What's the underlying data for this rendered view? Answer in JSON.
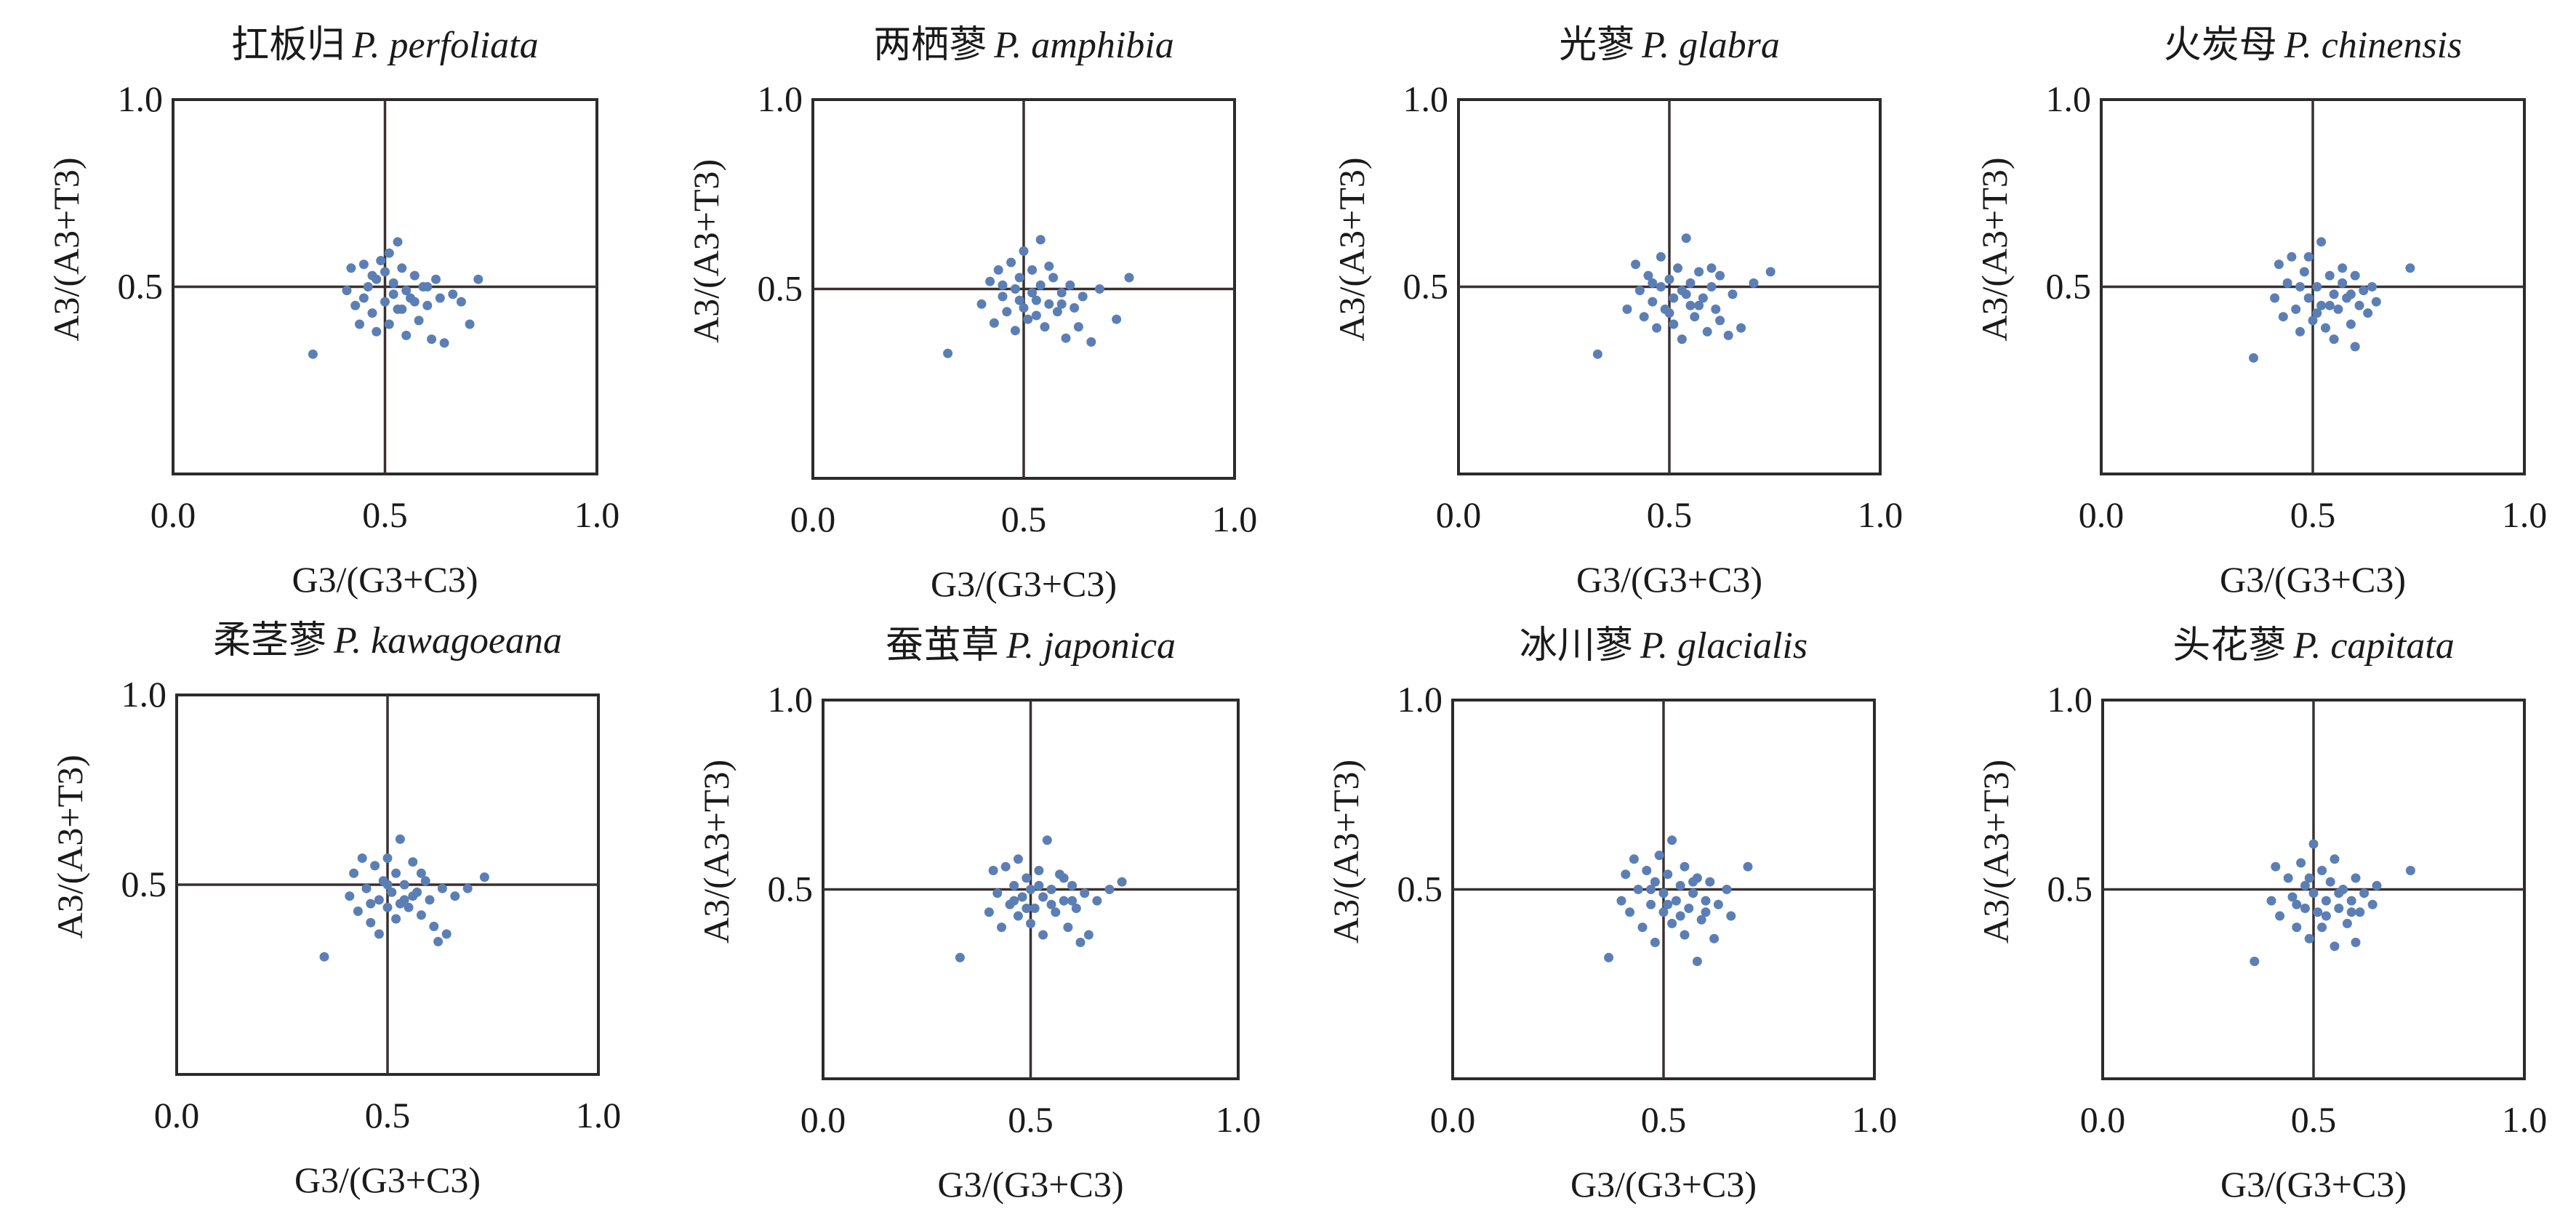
{
  "marker_color": "#5b7fb5",
  "frame_color": "#2b2b2b",
  "quadrant_line_color": "#3a3030",
  "chart_data": [
    {
      "type": "scatter",
      "title_cn": "扛板归",
      "title_species": "P. perfoliata",
      "xlabel": "G3/(G3+C3)",
      "ylabel": "A3/(A3+T3)",
      "xlim": [
        0.0,
        1.0
      ],
      "ylim": [
        0.0,
        1.0
      ],
      "xticks": [
        "0.0",
        "0.5",
        "1.0"
      ],
      "yticks": [
        "0.5",
        "1.0"
      ],
      "points": [
        [
          0.33,
          0.32
        ],
        [
          0.41,
          0.49
        ],
        [
          0.42,
          0.55
        ],
        [
          0.43,
          0.45
        ],
        [
          0.44,
          0.4
        ],
        [
          0.45,
          0.56
        ],
        [
          0.46,
          0.5
        ],
        [
          0.47,
          0.43
        ],
        [
          0.48,
          0.38
        ],
        [
          0.48,
          0.52
        ],
        [
          0.49,
          0.57
        ],
        [
          0.5,
          0.46
        ],
        [
          0.5,
          0.54
        ],
        [
          0.51,
          0.59
        ],
        [
          0.51,
          0.4
        ],
        [
          0.52,
          0.48
        ],
        [
          0.52,
          0.51
        ],
        [
          0.53,
          0.62
        ],
        [
          0.54,
          0.44
        ],
        [
          0.54,
          0.55
        ],
        [
          0.55,
          0.37
        ],
        [
          0.55,
          0.49
        ],
        [
          0.56,
          0.47
        ],
        [
          0.57,
          0.53
        ],
        [
          0.58,
          0.41
        ],
        [
          0.59,
          0.5
        ],
        [
          0.6,
          0.45
        ],
        [
          0.61,
          0.36
        ],
        [
          0.62,
          0.52
        ],
        [
          0.63,
          0.47
        ],
        [
          0.64,
          0.35
        ],
        [
          0.66,
          0.48
        ],
        [
          0.68,
          0.46
        ],
        [
          0.7,
          0.4
        ],
        [
          0.72,
          0.52
        ],
        [
          0.45,
          0.47
        ],
        [
          0.47,
          0.53
        ],
        [
          0.53,
          0.44
        ],
        [
          0.57,
          0.46
        ],
        [
          0.6,
          0.5
        ]
      ]
    },
    {
      "type": "scatter",
      "title_cn": "两栖蓼",
      "title_species": "P. amphibia",
      "xlabel": "G3/(G3+C3)",
      "ylabel": "A3/(A3+T3)",
      "xlim": [
        0.0,
        1.0
      ],
      "ylim": [
        0.0,
        1.0
      ],
      "xticks": [
        "0.0",
        "0.5",
        "1.0"
      ],
      "yticks": [
        "0.5",
        "1.0"
      ],
      "points": [
        [
          0.32,
          0.33
        ],
        [
          0.4,
          0.46
        ],
        [
          0.42,
          0.52
        ],
        [
          0.43,
          0.41
        ],
        [
          0.44,
          0.55
        ],
        [
          0.45,
          0.48
        ],
        [
          0.46,
          0.44
        ],
        [
          0.47,
          0.57
        ],
        [
          0.48,
          0.39
        ],
        [
          0.48,
          0.5
        ],
        [
          0.49,
          0.53
        ],
        [
          0.5,
          0.45
        ],
        [
          0.5,
          0.6
        ],
        [
          0.51,
          0.42
        ],
        [
          0.52,
          0.49
        ],
        [
          0.52,
          0.55
        ],
        [
          0.53,
          0.47
        ],
        [
          0.54,
          0.63
        ],
        [
          0.54,
          0.51
        ],
        [
          0.55,
          0.4
        ],
        [
          0.56,
          0.46
        ],
        [
          0.57,
          0.53
        ],
        [
          0.58,
          0.44
        ],
        [
          0.59,
          0.49
        ],
        [
          0.6,
          0.37
        ],
        [
          0.61,
          0.51
        ],
        [
          0.62,
          0.45
        ],
        [
          0.63,
          0.4
        ],
        [
          0.64,
          0.48
        ],
        [
          0.66,
          0.36
        ],
        [
          0.68,
          0.5
        ],
        [
          0.72,
          0.42
        ],
        [
          0.75,
          0.53
        ],
        [
          0.45,
          0.51
        ],
        [
          0.49,
          0.47
        ],
        [
          0.53,
          0.43
        ],
        [
          0.56,
          0.56
        ],
        [
          0.59,
          0.46
        ]
      ]
    },
    {
      "type": "scatter",
      "title_cn": "光蓼",
      "title_species": "P. glabra",
      "xlabel": "G3/(G3+C3)",
      "ylabel": "A3/(A3+T3)",
      "xlim": [
        0.0,
        1.0
      ],
      "ylim": [
        0.0,
        1.0
      ],
      "xticks": [
        "0.0",
        "0.5",
        "1.0"
      ],
      "yticks": [
        "0.5",
        "1.0"
      ],
      "points": [
        [
          0.33,
          0.32
        ],
        [
          0.4,
          0.44
        ],
        [
          0.42,
          0.56
        ],
        [
          0.43,
          0.49
        ],
        [
          0.44,
          0.42
        ],
        [
          0.45,
          0.53
        ],
        [
          0.46,
          0.46
        ],
        [
          0.47,
          0.39
        ],
        [
          0.48,
          0.58
        ],
        [
          0.48,
          0.5
        ],
        [
          0.49,
          0.44
        ],
        [
          0.5,
          0.52
        ],
        [
          0.51,
          0.47
        ],
        [
          0.51,
          0.4
        ],
        [
          0.52,
          0.55
        ],
        [
          0.53,
          0.49
        ],
        [
          0.53,
          0.36
        ],
        [
          0.54,
          0.63
        ],
        [
          0.55,
          0.45
        ],
        [
          0.55,
          0.51
        ],
        [
          0.56,
          0.42
        ],
        [
          0.57,
          0.54
        ],
        [
          0.58,
          0.47
        ],
        [
          0.59,
          0.38
        ],
        [
          0.6,
          0.5
        ],
        [
          0.61,
          0.44
        ],
        [
          0.62,
          0.53
        ],
        [
          0.64,
          0.37
        ],
        [
          0.65,
          0.48
        ],
        [
          0.67,
          0.39
        ],
        [
          0.7,
          0.51
        ],
        [
          0.74,
          0.54
        ],
        [
          0.46,
          0.51
        ],
        [
          0.5,
          0.43
        ],
        [
          0.54,
          0.48
        ],
        [
          0.57,
          0.45
        ],
        [
          0.6,
          0.55
        ],
        [
          0.62,
          0.41
        ]
      ]
    },
    {
      "type": "scatter",
      "title_cn": "火炭母",
      "title_species": "P. chinensis",
      "xlabel": "G3/(G3+C3)",
      "ylabel": "A3/(A3+T3)",
      "xlim": [
        0.0,
        1.0
      ],
      "ylim": [
        0.0,
        1.0
      ],
      "xticks": [
        "0.0",
        "0.5",
        "1.0"
      ],
      "yticks": [
        "0.5",
        "1.0"
      ],
      "points": [
        [
          0.36,
          0.31
        ],
        [
          0.41,
          0.47
        ],
        [
          0.42,
          0.56
        ],
        [
          0.43,
          0.42
        ],
        [
          0.44,
          0.51
        ],
        [
          0.45,
          0.58
        ],
        [
          0.46,
          0.44
        ],
        [
          0.47,
          0.38
        ],
        [
          0.48,
          0.54
        ],
        [
          0.49,
          0.47
        ],
        [
          0.49,
          0.58
        ],
        [
          0.5,
          0.41
        ],
        [
          0.51,
          0.5
        ],
        [
          0.52,
          0.62
        ],
        [
          0.52,
          0.45
        ],
        [
          0.53,
          0.39
        ],
        [
          0.54,
          0.53
        ],
        [
          0.55,
          0.48
        ],
        [
          0.55,
          0.36
        ],
        [
          0.56,
          0.44
        ],
        [
          0.57,
          0.51
        ],
        [
          0.58,
          0.47
        ],
        [
          0.59,
          0.4
        ],
        [
          0.6,
          0.53
        ],
        [
          0.6,
          0.34
        ],
        [
          0.61,
          0.45
        ],
        [
          0.62,
          0.49
        ],
        [
          0.63,
          0.43
        ],
        [
          0.64,
          0.5
        ],
        [
          0.65,
          0.46
        ],
        [
          0.73,
          0.55
        ],
        [
          0.47,
          0.5
        ],
        [
          0.51,
          0.43
        ],
        [
          0.54,
          0.45
        ],
        [
          0.57,
          0.55
        ],
        [
          0.59,
          0.48
        ]
      ]
    },
    {
      "type": "scatter",
      "title_cn": "柔茎蓼",
      "title_species": "P. kawagoeana",
      "xlabel": "G3/(G3+C3)",
      "ylabel": "A3/(A3+T3)",
      "xlim": [
        0.0,
        1.0
      ],
      "ylim": [
        0.0,
        1.0
      ],
      "xticks": [
        "0.0",
        "0.5",
        "1.0"
      ],
      "yticks": [
        "0.5",
        "1.0"
      ],
      "points": [
        [
          0.35,
          0.31
        ],
        [
          0.41,
          0.47
        ],
        [
          0.42,
          0.53
        ],
        [
          0.43,
          0.43
        ],
        [
          0.44,
          0.57
        ],
        [
          0.45,
          0.49
        ],
        [
          0.46,
          0.4
        ],
        [
          0.47,
          0.55
        ],
        [
          0.48,
          0.46
        ],
        [
          0.48,
          0.37
        ],
        [
          0.49,
          0.51
        ],
        [
          0.5,
          0.57
        ],
        [
          0.5,
          0.44
        ],
        [
          0.51,
          0.48
        ],
        [
          0.52,
          0.53
        ],
        [
          0.52,
          0.41
        ],
        [
          0.53,
          0.62
        ],
        [
          0.54,
          0.46
        ],
        [
          0.54,
          0.5
        ],
        [
          0.55,
          0.44
        ],
        [
          0.56,
          0.56
        ],
        [
          0.57,
          0.48
        ],
        [
          0.58,
          0.42
        ],
        [
          0.59,
          0.51
        ],
        [
          0.6,
          0.46
        ],
        [
          0.61,
          0.39
        ],
        [
          0.62,
          0.35
        ],
        [
          0.63,
          0.49
        ],
        [
          0.64,
          0.37
        ],
        [
          0.66,
          0.47
        ],
        [
          0.69,
          0.49
        ],
        [
          0.73,
          0.52
        ],
        [
          0.46,
          0.45
        ],
        [
          0.5,
          0.5
        ],
        [
          0.53,
          0.45
        ],
        [
          0.56,
          0.47
        ],
        [
          0.58,
          0.53
        ]
      ]
    },
    {
      "type": "scatter",
      "title_cn": "蚕茧草",
      "title_species": "P. japonica",
      "xlabel": "G3/(G3+C3)",
      "ylabel": "A3/(A3+T3)",
      "xlim": [
        0.0,
        1.0
      ],
      "ylim": [
        0.0,
        1.0
      ],
      "xticks": [
        "0.0",
        "0.5",
        "1.0"
      ],
      "yticks": [
        "0.5",
        "1.0"
      ],
      "points": [
        [
          0.33,
          0.32
        ],
        [
          0.4,
          0.44
        ],
        [
          0.41,
          0.55
        ],
        [
          0.42,
          0.49
        ],
        [
          0.43,
          0.4
        ],
        [
          0.44,
          0.56
        ],
        [
          0.45,
          0.46
        ],
        [
          0.46,
          0.51
        ],
        [
          0.47,
          0.43
        ],
        [
          0.47,
          0.58
        ],
        [
          0.48,
          0.48
        ],
        [
          0.49,
          0.53
        ],
        [
          0.5,
          0.41
        ],
        [
          0.5,
          0.5
        ],
        [
          0.51,
          0.45
        ],
        [
          0.52,
          0.55
        ],
        [
          0.53,
          0.48
        ],
        [
          0.53,
          0.38
        ],
        [
          0.54,
          0.63
        ],
        [
          0.55,
          0.5
        ],
        [
          0.56,
          0.44
        ],
        [
          0.57,
          0.54
        ],
        [
          0.58,
          0.47
        ],
        [
          0.59,
          0.4
        ],
        [
          0.6,
          0.51
        ],
        [
          0.61,
          0.45
        ],
        [
          0.62,
          0.36
        ],
        [
          0.63,
          0.49
        ],
        [
          0.64,
          0.38
        ],
        [
          0.66,
          0.47
        ],
        [
          0.69,
          0.5
        ],
        [
          0.72,
          0.52
        ],
        [
          0.46,
          0.47
        ],
        [
          0.49,
          0.45
        ],
        [
          0.52,
          0.51
        ],
        [
          0.55,
          0.46
        ],
        [
          0.58,
          0.53
        ],
        [
          0.6,
          0.47
        ]
      ]
    },
    {
      "type": "scatter",
      "title_cn": "冰川蓼",
      "title_species": "P. glacialis",
      "xlabel": "G3/(G3+C3)",
      "ylabel": "A3/(A3+T3)",
      "xlim": [
        0.0,
        1.0
      ],
      "ylim": [
        0.0,
        1.0
      ],
      "xticks": [
        "0.0",
        "0.5",
        "1.0"
      ],
      "yticks": [
        "0.5",
        "1.0"
      ],
      "points": [
        [
          0.37,
          0.32
        ],
        [
          0.4,
          0.47
        ],
        [
          0.41,
          0.54
        ],
        [
          0.42,
          0.44
        ],
        [
          0.43,
          0.58
        ],
        [
          0.44,
          0.5
        ],
        [
          0.45,
          0.4
        ],
        [
          0.46,
          0.55
        ],
        [
          0.47,
          0.46
        ],
        [
          0.48,
          0.52
        ],
        [
          0.48,
          0.36
        ],
        [
          0.49,
          0.59
        ],
        [
          0.5,
          0.44
        ],
        [
          0.5,
          0.49
        ],
        [
          0.51,
          0.54
        ],
        [
          0.52,
          0.41
        ],
        [
          0.52,
          0.63
        ],
        [
          0.53,
          0.47
        ],
        [
          0.54,
          0.51
        ],
        [
          0.55,
          0.38
        ],
        [
          0.55,
          0.56
        ],
        [
          0.56,
          0.45
        ],
        [
          0.57,
          0.49
        ],
        [
          0.58,
          0.31
        ],
        [
          0.58,
          0.53
        ],
        [
          0.59,
          0.42
        ],
        [
          0.6,
          0.47
        ],
        [
          0.61,
          0.52
        ],
        [
          0.62,
          0.37
        ],
        [
          0.63,
          0.46
        ],
        [
          0.65,
          0.5
        ],
        [
          0.66,
          0.43
        ],
        [
          0.7,
          0.56
        ],
        [
          0.47,
          0.5
        ],
        [
          0.51,
          0.46
        ],
        [
          0.54,
          0.43
        ],
        [
          0.57,
          0.52
        ],
        [
          0.6,
          0.44
        ]
      ]
    },
    {
      "type": "scatter",
      "title_cn": "头花蓼",
      "title_species": "P. capitata",
      "xlabel": "G3/(G3+C3)",
      "ylabel": "A3/(A3+T3)",
      "xlim": [
        0.0,
        1.0
      ],
      "ylim": [
        0.0,
        1.0
      ],
      "xticks": [
        "0.0",
        "0.5",
        "1.0"
      ],
      "yticks": [
        "0.5",
        "1.0"
      ],
      "points": [
        [
          0.36,
          0.31
        ],
        [
          0.4,
          0.47
        ],
        [
          0.41,
          0.56
        ],
        [
          0.42,
          0.43
        ],
        [
          0.44,
          0.53
        ],
        [
          0.45,
          0.48
        ],
        [
          0.46,
          0.4
        ],
        [
          0.47,
          0.57
        ],
        [
          0.48,
          0.45
        ],
        [
          0.48,
          0.51
        ],
        [
          0.49,
          0.37
        ],
        [
          0.5,
          0.62
        ],
        [
          0.5,
          0.49
        ],
        [
          0.51,
          0.44
        ],
        [
          0.52,
          0.55
        ],
        [
          0.52,
          0.4
        ],
        [
          0.53,
          0.47
        ],
        [
          0.54,
          0.52
        ],
        [
          0.55,
          0.35
        ],
        [
          0.55,
          0.58
        ],
        [
          0.56,
          0.45
        ],
        [
          0.57,
          0.5
        ],
        [
          0.58,
          0.41
        ],
        [
          0.59,
          0.47
        ],
        [
          0.6,
          0.53
        ],
        [
          0.6,
          0.36
        ],
        [
          0.61,
          0.44
        ],
        [
          0.62,
          0.49
        ],
        [
          0.64,
          0.46
        ],
        [
          0.65,
          0.51
        ],
        [
          0.73,
          0.55
        ],
        [
          0.46,
          0.46
        ],
        [
          0.49,
          0.53
        ],
        [
          0.53,
          0.43
        ],
        [
          0.56,
          0.49
        ],
        [
          0.59,
          0.44
        ]
      ]
    }
  ]
}
